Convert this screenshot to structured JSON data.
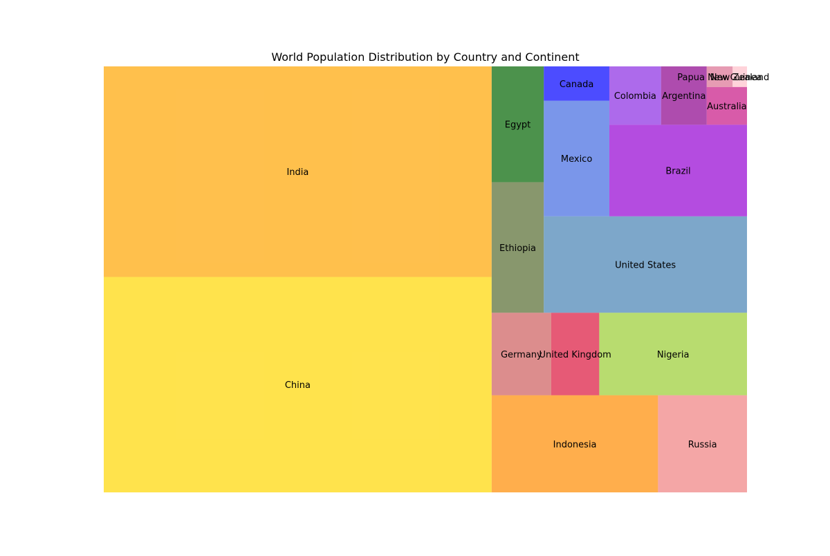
{
  "chart_data": {
    "type": "treemap",
    "title": "World Population Distribution by Country and Continent",
    "items": [
      {
        "label": "China",
        "value": 1412,
        "color": "#ffd700"
      },
      {
        "label": "India",
        "value": 1380,
        "color": "#ffa500"
      },
      {
        "label": "Indonesia",
        "value": 273,
        "color": "#ff8c00"
      },
      {
        "label": "Russia",
        "value": 146,
        "color": "#f08080"
      },
      {
        "label": "Germany",
        "value": 83,
        "color": "#cd5c5c"
      },
      {
        "label": "United Kingdom",
        "value": 67,
        "color": "#dc143c"
      },
      {
        "label": "Nigeria",
        "value": 206,
        "color": "#9acd32"
      },
      {
        "label": "Ethiopia",
        "value": 115,
        "color": "#556b2f"
      },
      {
        "label": "Egypt",
        "value": 102,
        "color": "#006400"
      },
      {
        "label": "United States",
        "value": 331,
        "color": "#4682b4"
      },
      {
        "label": "Mexico",
        "value": 128,
        "color": "#4169e1"
      },
      {
        "label": "Canada",
        "value": 38,
        "color": "#0000ff"
      },
      {
        "label": "Brazil",
        "value": 213,
        "color": "#9400d3"
      },
      {
        "label": "Colombia",
        "value": 51,
        "color": "#8a2be2"
      },
      {
        "label": "Argentina",
        "value": 45,
        "color": "#8b008b"
      },
      {
        "label": "Australia",
        "value": 25.7,
        "color": "#c71585"
      },
      {
        "label": "Papua New Guinea",
        "value": 9,
        "color": "#db7093"
      },
      {
        "label": "New Zealand",
        "value": 5,
        "color": "#ffc0cb"
      }
    ],
    "opacity": 0.7,
    "axis": "off"
  }
}
